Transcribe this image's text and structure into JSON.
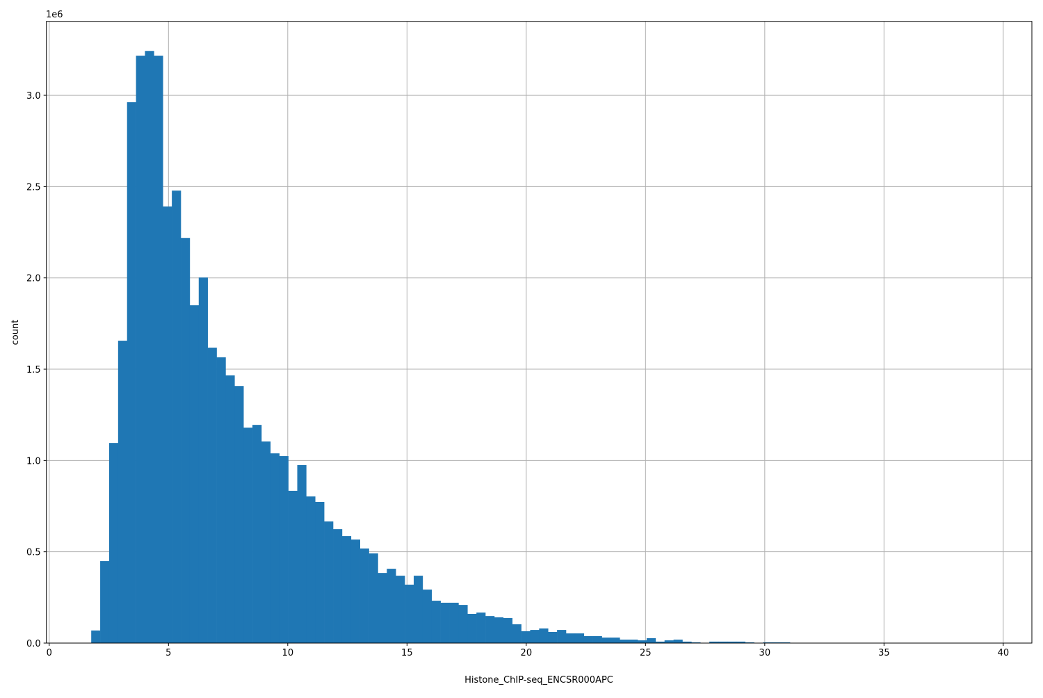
{
  "chart_data": {
    "type": "bar",
    "subtype": "histogram",
    "title": "",
    "xlabel": "Histone_ChIP-seq_ENCSR000APC",
    "ylabel": "count",
    "y_offset_label": "1e6",
    "xlim": [
      -0.12,
      41.2
    ],
    "ylim": [
      0,
      3405000
    ],
    "grid": true,
    "bar_color": "#1f77b4",
    "bin_start": 1.76,
    "bin_end": 39.32,
    "bin_count": 100,
    "x_ticks": [
      0,
      5,
      10,
      15,
      20,
      25,
      30,
      35,
      40
    ],
    "x_tick_labels": [
      "0",
      "5",
      "10",
      "15",
      "20",
      "25",
      "30",
      "35",
      "40"
    ],
    "y_ticks": [
      0,
      500000,
      1000000,
      1500000,
      2000000,
      2500000,
      3000000
    ],
    "y_tick_labels": [
      "0.0",
      "0.5",
      "1.0",
      "1.5",
      "2.0",
      "2.5",
      "3.0"
    ],
    "values": [
      69000,
      449000,
      1096000,
      1656000,
      2962000,
      3217000,
      3243000,
      3217000,
      2391000,
      2478000,
      2219000,
      1850000,
      2002000,
      1618000,
      1565000,
      1466000,
      1408000,
      1180000,
      1195000,
      1104000,
      1039000,
      1024000,
      834000,
      975000,
      803000,
      773000,
      666000,
      624000,
      586000,
      567000,
      518000,
      491000,
      384000,
      407000,
      369000,
      320000,
      369000,
      293000,
      232000,
      221000,
      221000,
      209000,
      160000,
      167000,
      148000,
      141000,
      137000,
      103000,
      65000,
      72000,
      80000,
      61000,
      72000,
      53000,
      53000,
      38000,
      38000,
      30000,
      30000,
      19000,
      19000,
      15000,
      27000,
      8000,
      15000,
      19000,
      8000,
      4000,
      0,
      8000,
      8000,
      8000,
      8000,
      4000,
      0,
      4000,
      4000,
      4000,
      0,
      0,
      0,
      0,
      0,
      0,
      0,
      0,
      0,
      0,
      0,
      0,
      0,
      0,
      0,
      0,
      0,
      0,
      0,
      0,
      0,
      0
    ]
  }
}
